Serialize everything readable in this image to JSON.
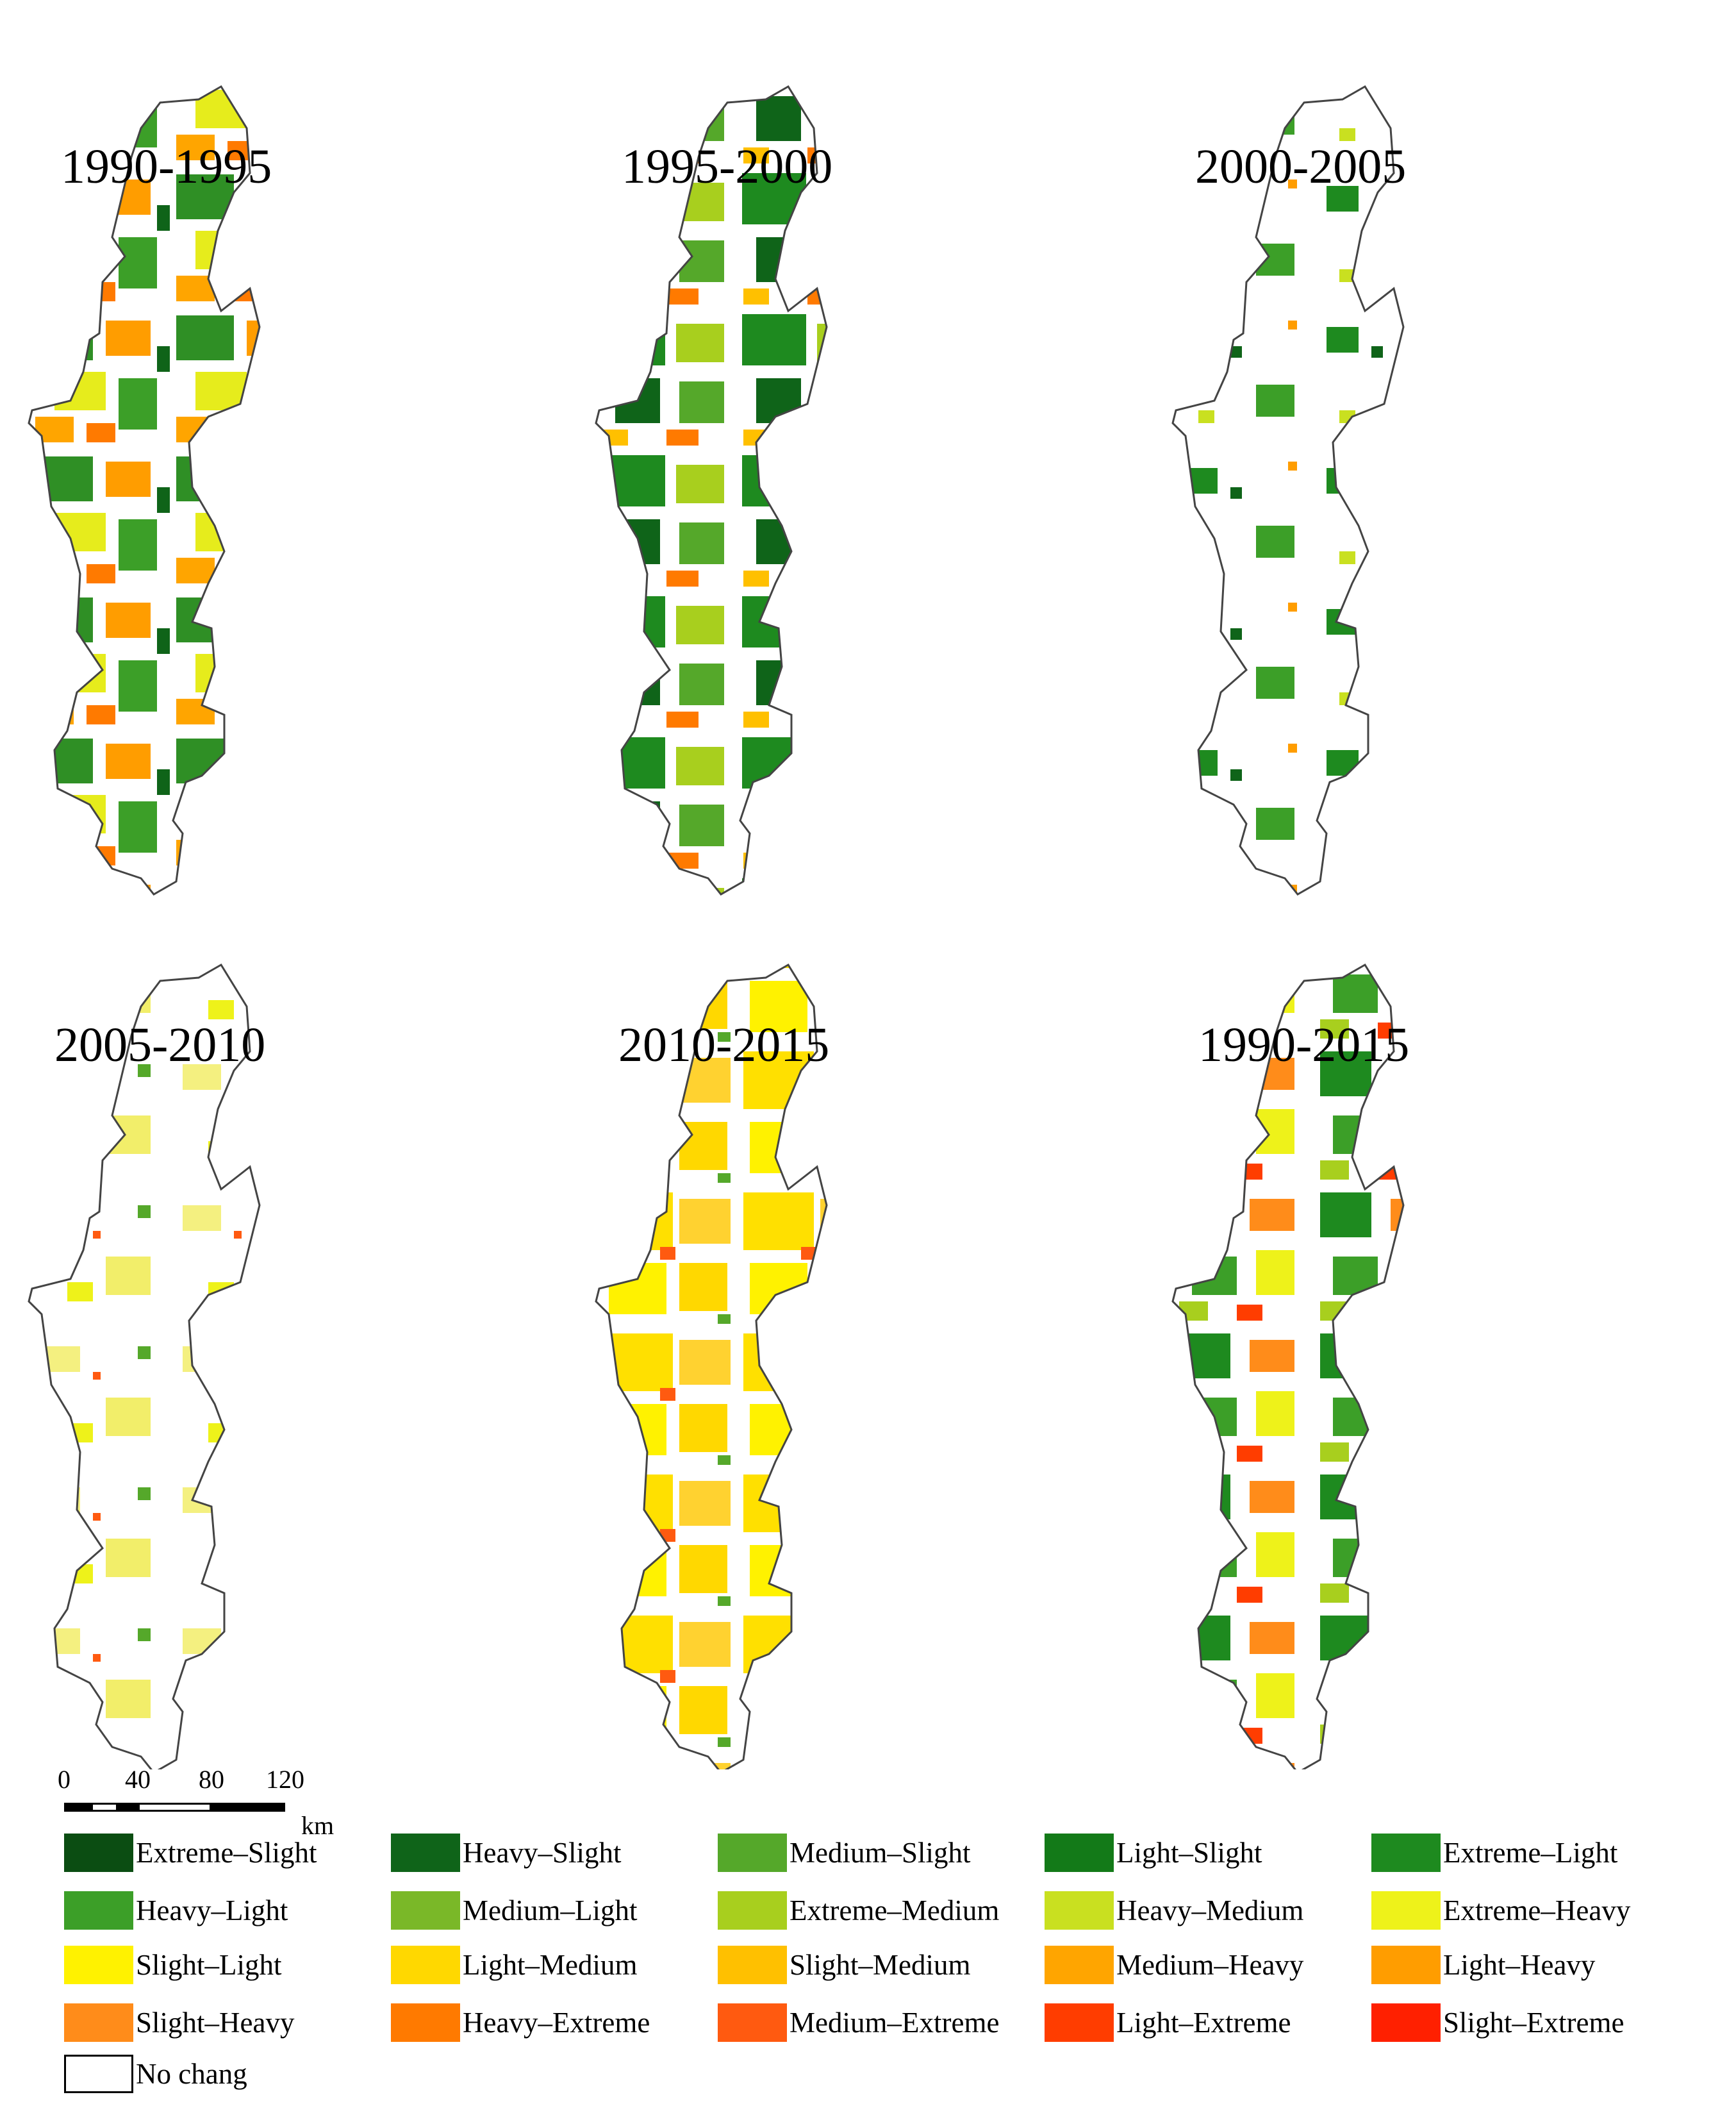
{
  "panels": [
    {
      "label": "1990-1995",
      "pattern": "p1"
    },
    {
      "label": "1995-2000",
      "pattern": "p2"
    },
    {
      "label": "2000-2005",
      "pattern": "p3"
    },
    {
      "label": "2005-2010",
      "pattern": "p4"
    },
    {
      "label": "2010-2015",
      "pattern": "p5"
    },
    {
      "label": "1990-2015",
      "pattern": "p6"
    }
  ],
  "scale_bar": {
    "ticks": [
      "0",
      "40",
      "80",
      "120"
    ],
    "unit": "km"
  },
  "legend": [
    {
      "label": "Extreme–Slight",
      "color": "#0b4d12"
    },
    {
      "label": "Heavy–Slight",
      "color": "#0f6419"
    },
    {
      "label": "Medium–Slight",
      "color": "#55a82a"
    },
    {
      "label": "Light–Slight",
      "color": "#137a18"
    },
    {
      "label": "Extreme–Light",
      "color": "#1e8a1f"
    },
    {
      "label": "Heavy–Light",
      "color": "#3c9f28"
    },
    {
      "label": "Medium–Light",
      "color": "#7ab828"
    },
    {
      "label": "Extreme–Medium",
      "color": "#a8cf1e"
    },
    {
      "label": "Heavy–Medium",
      "color": "#c9e020"
    },
    {
      "label": "Extreme–Heavy",
      "color": "#eef21a"
    },
    {
      "label": "Slight–Light",
      "color": "#fff200"
    },
    {
      "label": "Light–Medium",
      "color": "#ffd800"
    },
    {
      "label": "Slight–Medium",
      "color": "#ffc000"
    },
    {
      "label": "Medium–Heavy",
      "color": "#ffa500"
    },
    {
      "label": "Light–Heavy",
      "color": "#ff9d00"
    },
    {
      "label": "Slight–Heavy",
      "color": "#ff8c1a"
    },
    {
      "label": "Heavy–Extreme",
      "color": "#ff7a00"
    },
    {
      "label": "Medium–Extreme",
      "color": "#ff5a10"
    },
    {
      "label": "Light–Extreme",
      "color": "#ff3d00"
    },
    {
      "label": "Slight–Extreme",
      "color": "#ff2000"
    },
    {
      "label": "No chang",
      "color": "#ffffff"
    }
  ]
}
